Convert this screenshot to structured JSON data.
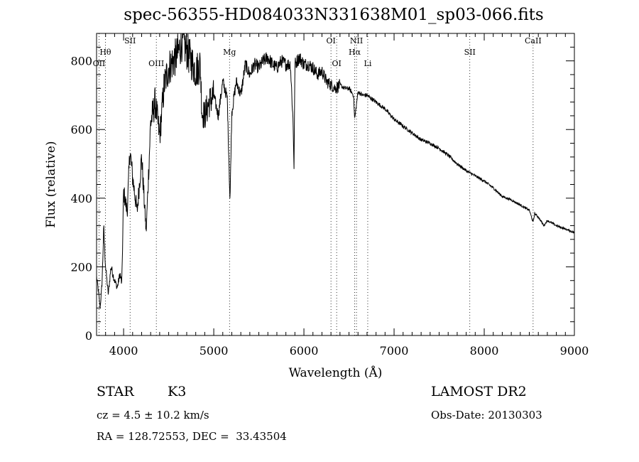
{
  "chart_data": {
    "type": "line",
    "title": "spec-56355-HD084033N331638M01_sp03-066.fits",
    "xlabel": "Wavelength (Å)",
    "ylabel": "Flux (relative)",
    "xlim": [
      3700,
      9000
    ],
    "ylim": [
      0,
      880
    ],
    "xticks": [
      4000,
      5000,
      6000,
      7000,
      8000,
      9000
    ],
    "yticks": [
      0,
      200,
      400,
      600,
      800
    ],
    "series": [
      {
        "x": [
          3700,
          3720,
          3740,
          3760,
          3780,
          3800,
          3830,
          3860,
          3900,
          3930,
          3960,
          3980,
          4000,
          4040,
          4070,
          4100,
          4150,
          4200,
          4250,
          4300,
          4350,
          4400,
          4450,
          4500,
          4550,
          4600,
          4650,
          4700,
          4750,
          4800,
          4850,
          4870,
          4900,
          4950,
          5000,
          5050,
          5100,
          5150,
          5180,
          5200,
          5250,
          5300,
          5350,
          5400,
          5450,
          5500,
          5550,
          5600,
          5650,
          5700,
          5750,
          5800,
          5850,
          5880,
          5890,
          5900,
          5950,
          6000,
          6050,
          6100,
          6150,
          6200,
          6250,
          6300,
          6350,
          6400,
          6450,
          6500,
          6550,
          6563,
          6600,
          6650,
          6700,
          6750,
          6800,
          6900,
          7000,
          7100,
          7200,
          7300,
          7400,
          7500,
          7600,
          7700,
          7800,
          7900,
          8000,
          8100,
          8200,
          8300,
          8400,
          8500,
          8542,
          8560,
          8600,
          8662,
          8700,
          8800,
          8900,
          9000
        ],
        "values": [
          170,
          130,
          80,
          150,
          310,
          200,
          120,
          200,
          160,
          140,
          180,
          150,
          420,
          360,
          540,
          460,
          360,
          520,
          300,
          620,
          680,
          580,
          730,
          780,
          800,
          820,
          860,
          830,
          800,
          770,
          790,
          650,
          640,
          680,
          700,
          640,
          740,
          690,
          390,
          650,
          740,
          700,
          790,
          760,
          790,
          780,
          800,
          810,
          790,
          780,
          800,
          790,
          790,
          620,
          490,
          790,
          810,
          790,
          790,
          780,
          760,
          770,
          740,
          730,
          720,
          730,
          720,
          720,
          700,
          630,
          710,
          700,
          700,
          690,
          680,
          660,
          630,
          610,
          590,
          570,
          560,
          545,
          525,
          500,
          480,
          465,
          450,
          430,
          405,
          395,
          380,
          365,
          330,
          355,
          345,
          320,
          335,
          320,
          310,
          300
        ]
      }
    ],
    "line_labels": [
      {
        "label": "Hθ",
        "x": 3798,
        "row": 2
      },
      {
        "label": "OII",
        "x": 3727,
        "row": 3
      },
      {
        "label": "SII",
        "x": 4072,
        "row": 1
      },
      {
        "label": "OIII",
        "x": 4363,
        "row": 3
      },
      {
        "label": "Mg",
        "x": 5175,
        "row": 2
      },
      {
        "label": "OI",
        "x": 6300,
        "row": 1
      },
      {
        "label": "OI",
        "x": 6363,
        "row": 3
      },
      {
        "label": "NII",
        "x": 6583,
        "row": 1
      },
      {
        "label": "Hα",
        "x": 6563,
        "row": 2
      },
      {
        "label": "Li",
        "x": 6708,
        "row": 3
      },
      {
        "label": "SII",
        "x": 7840,
        "row": 2
      },
      {
        "label": "CaII",
        "x": 8542,
        "row": 1
      }
    ],
    "grid": false
  },
  "info": {
    "object_class": "STAR",
    "subclass": "K3",
    "survey": "LAMOST DR2",
    "cz": "cz = 4.5 ± 10.2 km/s",
    "obs_date": "Obs-Date: 20130303",
    "coords": "RA = 128.72553, DEC =  33.43504"
  }
}
